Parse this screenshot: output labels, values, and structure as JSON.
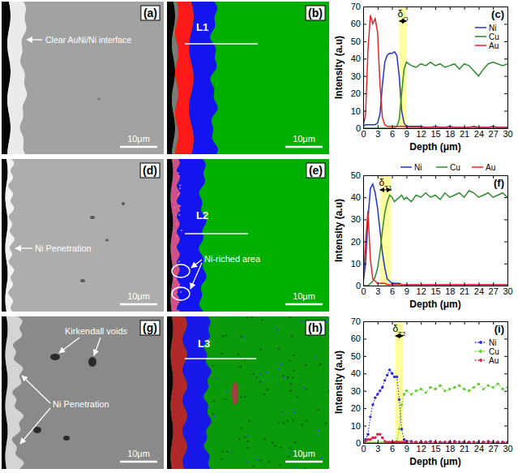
{
  "panels": [
    {
      "label": "(a)",
      "annotations": [
        "Clear AuNi/Ni interface"
      ],
      "scale_bar": "10μm"
    },
    {
      "label": "(b)",
      "line_label": "L1",
      "scale_bar": "10μm"
    },
    {
      "label": "(d)",
      "annotations": [
        "Ni Penetration"
      ],
      "scale_bar": "10μm"
    },
    {
      "label": "(e)",
      "line_label": "L2",
      "annotations": [
        "Ni-riched area"
      ],
      "scale_bar": "10μm"
    },
    {
      "label": "(g)",
      "annotations": [
        "Kirkendall voids",
        "Ni Penetration"
      ],
      "scale_bar": "10μm"
    },
    {
      "label": "(h)",
      "line_label": "L3",
      "scale_bar": "10μm"
    }
  ],
  "chart_data": [
    {
      "type": "line",
      "title": "(c)",
      "x_label": "Depth (μm)",
      "y_label": "Intensity (a.u)",
      "x": [
        0,
        0.5,
        1,
        1.5,
        2,
        2.5,
        3,
        3.5,
        4,
        4.5,
        5,
        5.5,
        6,
        6.5,
        7,
        7.5,
        8,
        8.5,
        9,
        10,
        11,
        12,
        13,
        14,
        15,
        16,
        17,
        18,
        19,
        20,
        21,
        22,
        23,
        24,
        25,
        26,
        27,
        28,
        29,
        30
      ],
      "series": [
        {
          "name": "Ni",
          "color": "#2233cc",
          "values": [
            1,
            2,
            2,
            2,
            2,
            2,
            3,
            8,
            25,
            38,
            42,
            43,
            43,
            44,
            42,
            30,
            10,
            3,
            1,
            1,
            1,
            1,
            0.5,
            0.5,
            1,
            0.5,
            0.5,
            1,
            0.5,
            0.5,
            0.5,
            0.5,
            1,
            0.5,
            0.5,
            0.5,
            1,
            0.5,
            0.5,
            0.5
          ]
        },
        {
          "name": "Cu",
          "color": "#2e8b2e",
          "values": [
            0,
            0,
            0,
            0,
            0,
            0,
            0,
            0,
            0,
            0,
            0,
            0,
            0,
            0,
            1,
            5,
            20,
            34,
            38,
            36,
            35,
            37,
            36,
            38,
            36,
            37,
            35,
            36,
            37,
            34,
            37,
            36,
            33,
            30,
            34,
            37,
            38,
            37,
            36,
            37
          ]
        },
        {
          "name": "Au",
          "color": "#e3262b",
          "values": [
            1,
            8,
            45,
            65,
            60,
            63,
            55,
            25,
            6,
            2,
            1,
            1,
            1,
            1,
            1,
            1,
            1,
            1,
            0.5,
            0.5,
            0.5,
            0.5,
            0.5,
            0.5,
            0.5,
            0.5,
            0.5,
            0.5,
            0.5,
            0.5,
            0.5,
            0.5,
            0.5,
            0.5,
            0.5,
            0.5,
            0.5,
            0.5,
            0.5,
            0.5
          ]
        }
      ],
      "xlim": [
        0,
        30
      ],
      "xticks": [
        0,
        3,
        6,
        9,
        12,
        15,
        18,
        21,
        24,
        27,
        30
      ],
      "ylim": [
        0,
        70
      ],
      "yticks": [
        0,
        10,
        20,
        30,
        40,
        50,
        60,
        70
      ],
      "legend": "upper right",
      "annotations": [
        {
          "text": "δO",
          "x_start": 7.5,
          "x_end": 9
        }
      ]
    },
    {
      "type": "line",
      "title": "(f)",
      "x_label": "Depth (μm)",
      "y_label": "Intensity (a.u)",
      "x": [
        0,
        0.5,
        1,
        1.5,
        2,
        2.5,
        3,
        3.5,
        4,
        4.5,
        5,
        5.5,
        6,
        6.5,
        7,
        7.5,
        8,
        8.5,
        9,
        10,
        11,
        12,
        13,
        14,
        15,
        16,
        17,
        18,
        19,
        20,
        21,
        22,
        23,
        24,
        25,
        26,
        27,
        28,
        29,
        30
      ],
      "series": [
        {
          "name": "Ni",
          "color": "#2233cc",
          "values": [
            1,
            10,
            30,
            44,
            46,
            42,
            35,
            25,
            15,
            8,
            3,
            2,
            1,
            1,
            1,
            1,
            0.5,
            0.5,
            0.5,
            0.5,
            0.5,
            0.5,
            0.5,
            0.5,
            0.5,
            0.5,
            0.5,
            0.5,
            0.5,
            0.5,
            0.5,
            0.5,
            0.5,
            0.5,
            0.5,
            0.5,
            0.5,
            0.5,
            0.5,
            0.5
          ]
        },
        {
          "name": "Cu",
          "color": "#2e8b2e",
          "values": [
            0,
            0,
            0,
            1,
            2,
            4,
            8,
            15,
            25,
            33,
            38,
            41,
            40,
            38,
            39,
            40,
            41,
            39,
            40,
            38,
            41,
            40,
            42,
            40,
            41,
            39,
            42,
            40,
            41,
            42,
            40,
            43,
            42,
            40,
            41,
            42,
            40,
            41,
            42,
            40
          ]
        },
        {
          "name": "Au",
          "color": "#e3262b",
          "values": [
            1,
            20,
            34,
            12,
            3,
            2,
            1,
            1,
            1,
            1,
            0.5,
            0.5,
            0.5,
            0.5,
            0.5,
            0.5,
            0.5,
            0.5,
            0.5,
            0.5,
            0.5,
            0.5,
            0.5,
            0.5,
            0.5,
            0.5,
            0.5,
            0.5,
            0.5,
            0.5,
            0.5,
            0.5,
            0.5,
            0.5,
            0.5,
            0.5,
            0.5,
            0.5,
            0.5,
            0.5
          ]
        }
      ],
      "xlim": [
        0,
        30
      ],
      "xticks": [
        0,
        3,
        6,
        9,
        12,
        15,
        18,
        21,
        24,
        27,
        30
      ],
      "ylim": [
        0,
        50
      ],
      "yticks": [
        0,
        10,
        20,
        30,
        40,
        50
      ],
      "legend": "top",
      "annotations": [
        {
          "text": "δT1",
          "x_start": 3.5,
          "x_end": 5.8
        }
      ]
    },
    {
      "type": "line",
      "title": "(i)",
      "x_label": "Depth (μm)",
      "y_label": "Intensity (a.u)",
      "x": [
        0,
        0.5,
        1,
        1.5,
        2,
        2.5,
        3,
        3.5,
        4,
        4.5,
        5,
        5.5,
        6,
        6.5,
        7,
        7.5,
        8,
        8.5,
        9,
        10,
        11,
        12,
        13,
        14,
        15,
        16,
        17,
        18,
        19,
        20,
        21,
        22,
        23,
        24,
        25,
        26,
        27,
        28,
        29,
        30
      ],
      "series": [
        {
          "name": "Ni",
          "color": "#2a2ad6",
          "marker": "circle",
          "line_style": "dotted",
          "values": [
            1,
            2,
            5,
            15,
            22,
            26,
            28,
            30,
            32,
            36,
            39,
            42,
            40,
            38,
            38,
            25,
            8,
            2,
            1,
            1,
            0.5,
            0.5,
            0.5,
            1,
            0.5,
            0.5,
            0.5,
            0.5,
            1,
            0.5,
            0.5,
            0.5,
            0.5,
            0.5,
            0.5,
            1,
            0.5,
            0.5,
            0.5,
            0.5
          ]
        },
        {
          "name": "Cu",
          "color": "#66cc33",
          "marker": "circle",
          "line_style": "dotted",
          "values": [
            0,
            0,
            0,
            0,
            0,
            0,
            0,
            0,
            0,
            0,
            0,
            0,
            0,
            0,
            1,
            8,
            22,
            28,
            30,
            28,
            30,
            31,
            29,
            32,
            31,
            33,
            30,
            31,
            32,
            33,
            31,
            30,
            32,
            34,
            31,
            33,
            32,
            34,
            31,
            32
          ]
        },
        {
          "name": "Au",
          "color": "#cc2244",
          "marker": "circle",
          "line_style": "dotted",
          "values": [
            0.5,
            1,
            2,
            2,
            3,
            3,
            5,
            5,
            3,
            1,
            0.5,
            0.5,
            0.5,
            0.5,
            0.5,
            0.5,
            0.5,
            0.5,
            0.5,
            0.5,
            0.5,
            0.5,
            0.5,
            0.5,
            0.5,
            0.5,
            0.5,
            0.5,
            0.5,
            0.5,
            0.5,
            0.5,
            0.5,
            0.5,
            0.5,
            0.5,
            0.5,
            0.5,
            0.5,
            0.5
          ]
        }
      ],
      "xlim": [
        0,
        30
      ],
      "xticks": [
        0,
        3,
        6,
        9,
        12,
        15,
        18,
        21,
        24,
        27,
        30
      ],
      "ylim": [
        0,
        70
      ],
      "yticks": [
        0,
        10,
        20,
        30,
        40,
        50,
        60,
        70
      ],
      "legend": "upper right",
      "annotations": [
        {
          "text": "δT2",
          "x_start": 6.7,
          "x_end": 8.3
        }
      ]
    }
  ]
}
